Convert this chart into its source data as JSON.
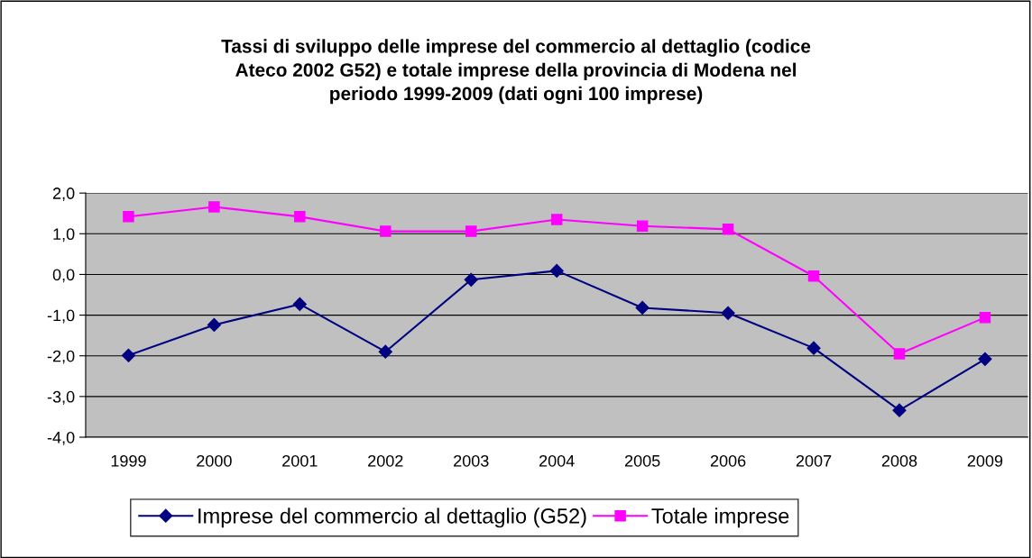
{
  "chart_data": {
    "type": "line",
    "title": "Tassi di sviluppo delle imprese del commercio al dettaglio (codice\nAteco 2002 G52) e totale imprese della provincia di Modena nel\nperiodo 1999-2009 (dati ogni 100 imprese)",
    "categories": [
      "1999",
      "2000",
      "2001",
      "2002",
      "2003",
      "2004",
      "2005",
      "2006",
      "2007",
      "2008",
      "2009"
    ],
    "series": [
      {
        "name": "Imprese del commercio al dettaglio (G52)",
        "color": "#000080",
        "marker": "diamond",
        "values": [
          -1.99,
          -1.24,
          -0.73,
          -1.9,
          -0.13,
          0.09,
          -0.82,
          -0.95,
          -1.81,
          -3.34,
          -2.08
        ]
      },
      {
        "name": "Totale imprese",
        "color": "#ff00ff",
        "marker": "square",
        "values": [
          1.42,
          1.66,
          1.42,
          1.06,
          1.06,
          1.35,
          1.19,
          1.11,
          -0.04,
          -1.95,
          -1.06
        ]
      }
    ],
    "ylim": [
      -4,
      2
    ],
    "yticks": [
      {
        "value": -4,
        "label": "-4,0"
      },
      {
        "value": -3,
        "label": "-3,0"
      },
      {
        "value": -2,
        "label": "-2,0"
      },
      {
        "value": -1,
        "label": "-1,0"
      },
      {
        "value": 0,
        "label": "0,0"
      },
      {
        "value": 1,
        "label": "1,0"
      },
      {
        "value": 2,
        "label": "2,0"
      }
    ],
    "grid": "y",
    "legend": "bottom"
  }
}
